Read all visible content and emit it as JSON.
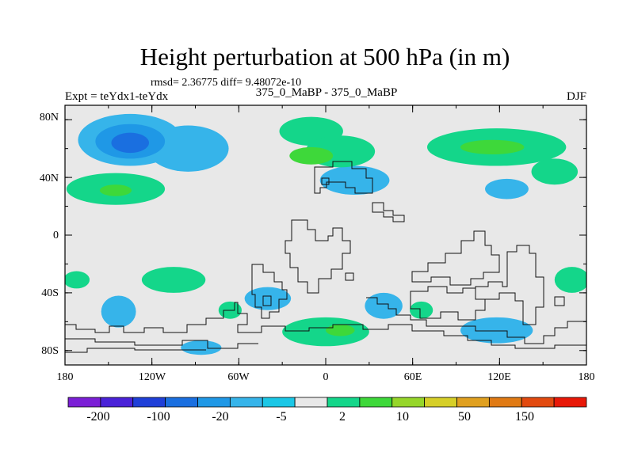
{
  "chart_data": {
    "type": "heatmap",
    "title": "Height perturbation at 500 hPa (in m)",
    "stats_text": "rmsd= 2.36775 diff= 9.48072e-10",
    "left_label": "Expt = teYdx1-teYdx",
    "center_label": "375_0_MaBP - 375_0_MaBP",
    "right_label": "DJF",
    "x_ticks": [
      "180",
      "120W",
      "60W",
      "0",
      "60E",
      "120E",
      "180"
    ],
    "y_ticks": [
      "80N",
      "40N",
      "0",
      "40S",
      "80S"
    ],
    "xlim": [
      -180,
      180
    ],
    "ylim": [
      -90,
      90
    ],
    "colorbar_labels": [
      "-200",
      "-100",
      "-20",
      "-5",
      "2",
      "10",
      "50",
      "150"
    ],
    "colorbar_colors": [
      "#7b1fd6",
      "#4a22d8",
      "#1f3fd8",
      "#1a6fe0",
      "#1f98e6",
      "#36b4ea",
      "#1bc7e6",
      "#e8e8e8",
      "#14d68a",
      "#3ed83a",
      "#96d62a",
      "#d6cf28",
      "#e0a020",
      "#e07a14",
      "#e24a10",
      "#e81808"
    ],
    "regions": [
      {
        "name": "light-blue",
        "color": "#36b4ea",
        "blobs": [
          {
            "lon": -135,
            "lat": 66,
            "rlon": 36,
            "rlat": 18
          },
          {
            "lon": -95,
            "lat": 60,
            "rlon": 28,
            "rlat": 16
          },
          {
            "lon": 20,
            "lat": 38,
            "rlon": 24,
            "rlat": 10
          },
          {
            "lon": 125,
            "lat": 32,
            "rlon": 15,
            "rlat": 7
          },
          {
            "lon": -143,
            "lat": -53,
            "rlon": 12,
            "rlat": 11
          },
          {
            "lon": -40,
            "lat": -44,
            "rlon": 16,
            "rlat": 8
          },
          {
            "lon": 40,
            "lat": -49,
            "rlon": 13,
            "rlat": 9
          },
          {
            "lon": 118,
            "lat": -66,
            "rlon": 25,
            "rlat": 9
          },
          {
            "lon": -86,
            "lat": -78,
            "rlon": 14,
            "rlat": 5
          }
        ]
      },
      {
        "name": "mid-blue",
        "color": "#1f98e6",
        "blobs": [
          {
            "lon": -135,
            "lat": 65,
            "rlon": 24,
            "rlat": 12
          }
        ]
      },
      {
        "name": "dark-blue",
        "color": "#1a6fe0",
        "blobs": [
          {
            "lon": -135,
            "lat": 64,
            "rlon": 13,
            "rlat": 7
          }
        ]
      },
      {
        "name": "light-green",
        "color": "#14d68a",
        "blobs": [
          {
            "lon": -10,
            "lat": 72,
            "rlon": 22,
            "rlat": 10
          },
          {
            "lon": 10,
            "lat": 58,
            "rlon": 24,
            "rlat": 11
          },
          {
            "lon": 118,
            "lat": 61,
            "rlon": 48,
            "rlat": 13
          },
          {
            "lon": 158,
            "lat": 44,
            "rlon": 16,
            "rlat": 9
          },
          {
            "lon": -145,
            "lat": 32,
            "rlon": 34,
            "rlat": 11
          },
          {
            "lon": -105,
            "lat": -31,
            "rlon": 22,
            "rlat": 9
          },
          {
            "lon": -172,
            "lat": -31,
            "rlon": 9,
            "rlat": 6
          },
          {
            "lon": -66,
            "lat": -52,
            "rlon": 8,
            "rlat": 6
          },
          {
            "lon": 66,
            "lat": -52,
            "rlon": 8,
            "rlat": 6
          },
          {
            "lon": 170,
            "lat": -31,
            "rlon": 12,
            "rlat": 9
          },
          {
            "lon": 0,
            "lat": -67,
            "rlon": 30,
            "rlat": 10
          }
        ]
      },
      {
        "name": "green",
        "color": "#3ed83a",
        "blobs": [
          {
            "lon": -10,
            "lat": 55,
            "rlon": 15,
            "rlat": 6
          },
          {
            "lon": 115,
            "lat": 61,
            "rlon": 22,
            "rlat": 5
          },
          {
            "lon": -145,
            "lat": 31,
            "rlon": 11,
            "rlat": 4
          },
          {
            "lon": 10,
            "lat": -66,
            "rlon": 10,
            "rlat": 4
          }
        ]
      }
    ]
  }
}
